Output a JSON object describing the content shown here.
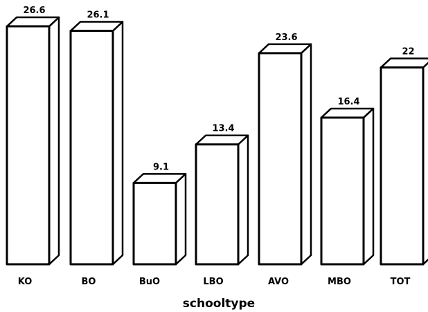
{
  "chart_data": {
    "type": "bar",
    "title": "",
    "xlabel": "schooltype",
    "ylabel": "",
    "categories": [
      "KO",
      "BO",
      "BuO",
      "LBO",
      "AVO",
      "MBO",
      "TOT"
    ],
    "values": [
      26.6,
      26.1,
      9.1,
      13.4,
      23.6,
      16.4,
      22
    ],
    "value_labels": [
      "26.6",
      "26.1",
      "9.1",
      "13.4",
      "23.6",
      "16.4",
      "22"
    ],
    "ylim": [
      0,
      28
    ],
    "grid": false,
    "legend": "none",
    "bar_style": "3d-outline",
    "colors": {
      "bar_fill": "#ffffff",
      "bar_stroke": "#000000",
      "text": "#000000"
    }
  }
}
